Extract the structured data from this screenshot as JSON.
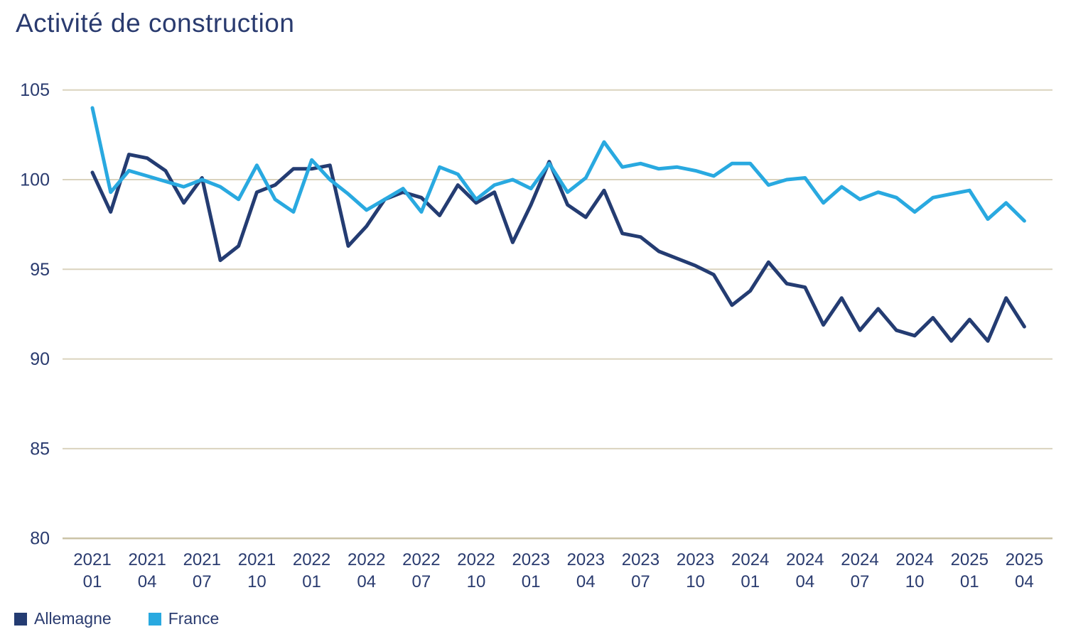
{
  "title": "Activité de construction",
  "colors": {
    "allemagne_line": "#243c72",
    "france_line": "#29a9e0",
    "grid_line": "#dad3be",
    "baseline": "#cbc3a7",
    "axis_text": "#2a3b6f",
    "background": "#ffffff"
  },
  "legend": {
    "items": [
      {
        "label": "Allemagne",
        "color": "#243c72"
      },
      {
        "label": "France",
        "color": "#29a9e0"
      }
    ]
  },
  "chart_data": {
    "type": "line",
    "title": "Activité de construction",
    "xlabel": "",
    "ylabel": "",
    "ylim": [
      80,
      105
    ],
    "y_ticks": [
      105,
      100,
      95,
      90,
      85,
      80
    ],
    "grid": true,
    "legend_position": "bottom-left",
    "x": [
      "2021-01",
      "2021-02",
      "2021-03",
      "2021-04",
      "2021-05",
      "2021-06",
      "2021-07",
      "2021-08",
      "2021-09",
      "2021-10",
      "2021-11",
      "2021-12",
      "2022-01",
      "2022-02",
      "2022-03",
      "2022-04",
      "2022-05",
      "2022-06",
      "2022-07",
      "2022-08",
      "2022-09",
      "2022-10",
      "2022-11",
      "2022-12",
      "2023-01",
      "2023-02",
      "2023-03",
      "2023-04",
      "2023-05",
      "2023-06",
      "2023-07",
      "2023-08",
      "2023-09",
      "2023-10",
      "2023-11",
      "2023-12",
      "2024-01",
      "2024-02",
      "2024-03",
      "2024-04",
      "2024-05",
      "2024-06",
      "2024-07",
      "2024-08",
      "2024-09",
      "2024-10",
      "2024-11",
      "2024-12",
      "2025-01",
      "2025-02",
      "2025-03",
      "2025-04"
    ],
    "x_tick_labels": [
      [
        "2021",
        "01"
      ],
      [
        "2021",
        "04"
      ],
      [
        "2021",
        "07"
      ],
      [
        "2021",
        "10"
      ],
      [
        "2022",
        "01"
      ],
      [
        "2022",
        "04"
      ],
      [
        "2022",
        "07"
      ],
      [
        "2022",
        "10"
      ],
      [
        "2023",
        "01"
      ],
      [
        "2023",
        "04"
      ],
      [
        "2023",
        "07"
      ],
      [
        "2023",
        "10"
      ],
      [
        "2024",
        "01"
      ],
      [
        "2024",
        "04"
      ],
      [
        "2024",
        "07"
      ],
      [
        "2024",
        "10"
      ],
      [
        "2025",
        "01"
      ],
      [
        "2025",
        "04"
      ]
    ],
    "series": [
      {
        "name": "Allemagne",
        "color": "#243c72",
        "values": [
          100.4,
          98.2,
          101.4,
          101.2,
          100.5,
          98.7,
          100.1,
          95.5,
          96.3,
          99.3,
          99.7,
          100.6,
          100.6,
          100.8,
          96.3,
          97.4,
          98.9,
          99.3,
          99.0,
          98.0,
          99.7,
          98.7,
          99.3,
          96.5,
          98.6,
          101.0,
          98.6,
          97.9,
          99.4,
          97.0,
          96.8,
          96.0,
          95.6,
          95.2,
          94.7,
          93.0,
          93.8,
          95.4,
          94.2,
          94.0,
          91.9,
          93.4,
          91.6,
          92.8,
          91.6,
          91.3,
          92.3,
          91.0,
          92.2,
          91.0,
          93.4,
          91.8
        ]
      },
      {
        "name": "France",
        "color": "#29a9e0",
        "values": [
          104.0,
          99.3,
          100.5,
          100.2,
          99.9,
          99.6,
          100.0,
          99.6,
          98.9,
          100.8,
          98.9,
          98.2,
          101.1,
          100.0,
          99.2,
          98.3,
          98.9,
          99.5,
          98.2,
          100.7,
          100.3,
          98.9,
          99.7,
          100.0,
          99.5,
          100.9,
          99.3,
          100.1,
          102.1,
          100.7,
          100.9,
          100.6,
          100.7,
          100.5,
          100.2,
          100.9,
          100.9,
          99.7,
          100.0,
          100.1,
          98.7,
          99.6,
          98.9,
          99.3,
          99.0,
          98.2,
          99.0,
          99.2,
          99.4,
          97.8,
          98.7,
          97.7
        ]
      }
    ]
  }
}
